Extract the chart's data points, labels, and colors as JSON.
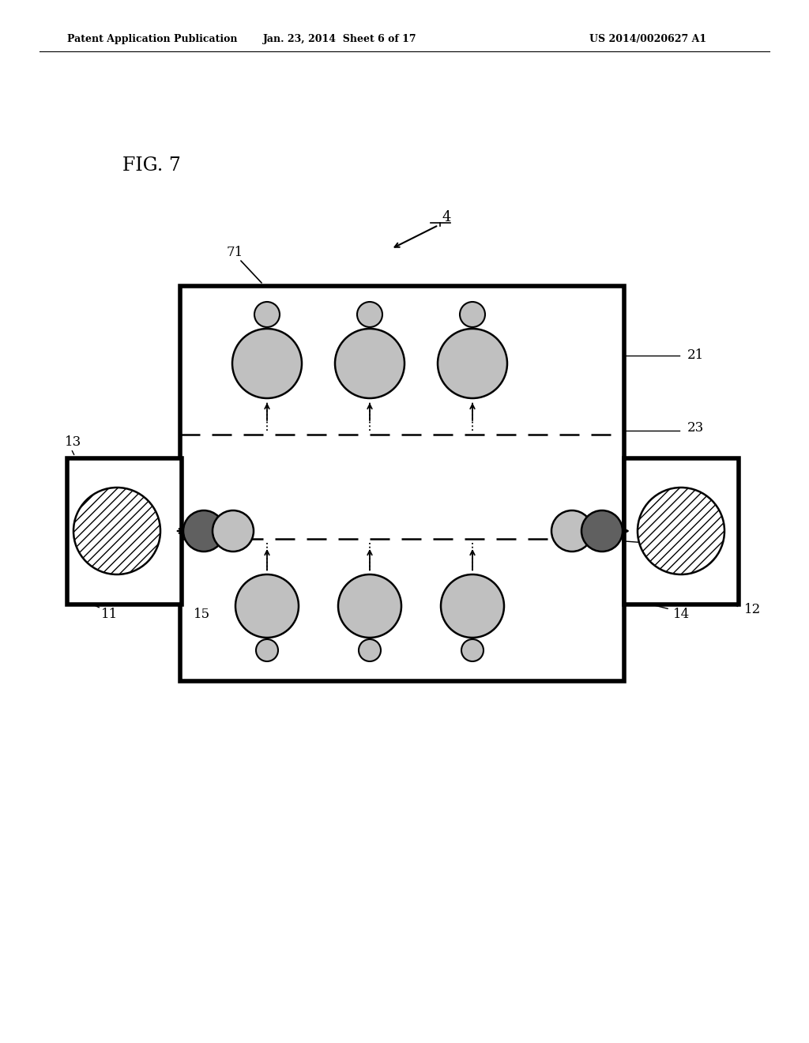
{
  "bg_color": "#ffffff",
  "header_left": "Patent Application Publication",
  "header_mid": "Jan. 23, 2014  Sheet 6 of 17",
  "header_right": "US 2014/0020627 A1",
  "fig_label": "FIG. 7",
  "light_gray": "#c0c0c0",
  "dark_gray": "#606060",
  "black": "#000000",
  "white": "#ffffff"
}
